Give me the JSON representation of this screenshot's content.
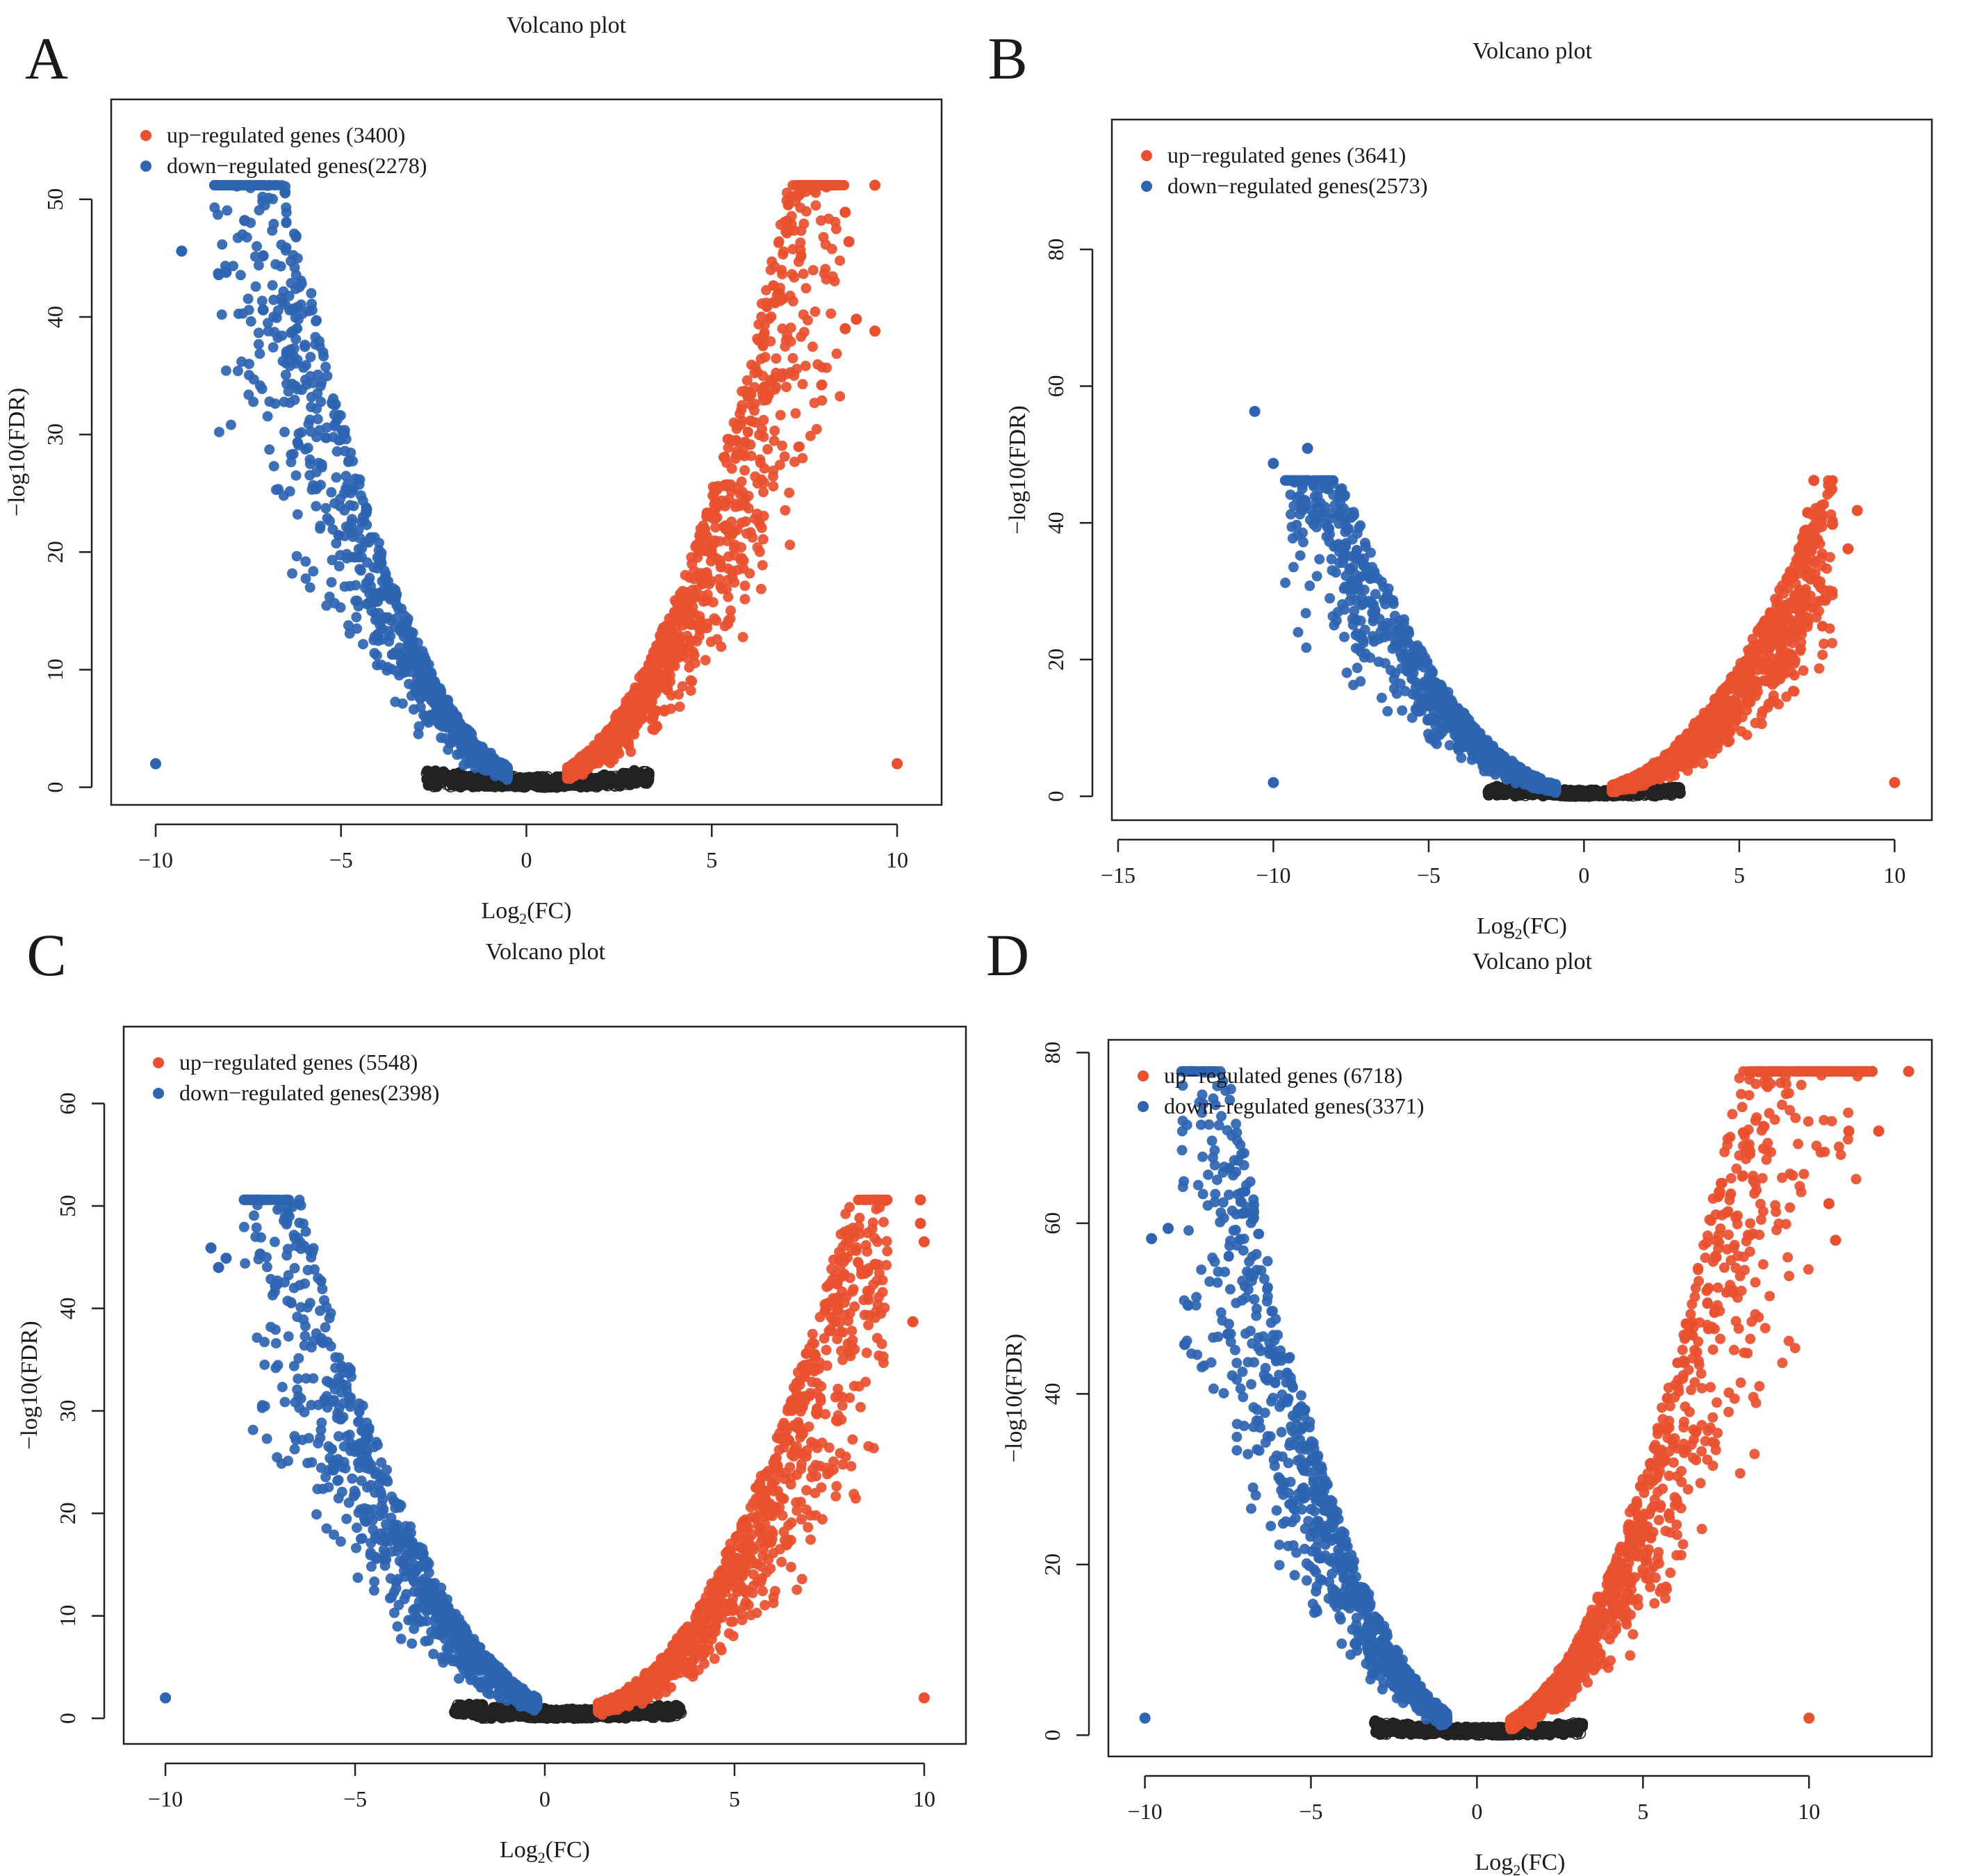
{
  "figure": {
    "colors": {
      "up": "#E8502F",
      "down": "#2E64B2",
      "ns": "#222222",
      "axis": "#222222"
    }
  },
  "chart_data": [
    {
      "panel_letter": "A",
      "type": "scatter",
      "title": "Volcano plot",
      "xlabel": "Log2(FC)",
      "ylabel": "−log10(FDR)",
      "xlim": [
        -11.2,
        11.2
      ],
      "ylim": [
        -1.5,
        58.5
      ],
      "xticks": [
        -10,
        -5,
        0,
        5,
        10
      ],
      "xtick_labels": [
        "−10",
        "−5",
        "0",
        "5",
        "10"
      ],
      "yticks": [
        0,
        10,
        20,
        30,
        40,
        50
      ],
      "ytick_labels": [
        "0",
        "10",
        "20",
        "30",
        "40",
        "50"
      ],
      "legend": {
        "position": "top-left",
        "entries": [
          {
            "label": "up−regulated genes (3400)",
            "series": "up"
          },
          {
            "label": "down−regulated genes(2278)",
            "series": "down"
          }
        ]
      },
      "curve": {
        "k": 1.1,
        "c": 0.4,
        "center": 0.3,
        "up_start": 1.1,
        "down_start": -0.5,
        "x_max": 9.4,
        "x_min": -9.3,
        "y_max": 51.2
      },
      "series": [
        {
          "name": "up-regulated genes",
          "count": 3400,
          "points": [
            [
              9.4,
              51.2
            ],
            [
              8.6,
              48.9
            ],
            [
              8.7,
              46.4
            ],
            [
              8.9,
              39.8
            ],
            [
              8.6,
              39.0
            ],
            [
              9.4,
              38.8
            ],
            [
              10,
              2
            ]
          ]
        },
        {
          "name": "down-regulated genes",
          "count": 2278,
          "points": [
            [
              -9.3,
              45.6
            ],
            [
              -7.6,
              48.2
            ],
            [
              -8.3,
              43.6
            ],
            [
              -8.1,
              43.8
            ],
            [
              -7.1,
              45.2
            ],
            [
              -7.1,
              40.6
            ],
            [
              -10,
              2
            ]
          ]
        }
      ]
    },
    {
      "panel_letter": "B",
      "type": "scatter",
      "title": "Volcano plot",
      "xlabel": "Log2(FC)",
      "ylabel": "−log10(FDR)",
      "xlim": [
        -15.2,
        11.2
      ],
      "ylim": [
        -3.5,
        99
      ],
      "xticks": [
        -15,
        -10,
        -5,
        0,
        5,
        10
      ],
      "xtick_labels": [
        "−15",
        "−10",
        "−5",
        "0",
        "5",
        "10"
      ],
      "yticks": [
        0,
        20,
        40,
        60,
        80
      ],
      "ytick_labels": [
        "0",
        "20",
        "40",
        "60",
        "80"
      ],
      "legend": {
        "position": "top-left",
        "entries": [
          {
            "label": "up−regulated genes (3641)",
            "series": "up"
          },
          {
            "label": "down−regulated genes(2573)",
            "series": "down"
          }
        ]
      },
      "curve": {
        "k": 0.75,
        "c": 0.4,
        "center": 0.0,
        "up_start": 0.9,
        "down_start": -0.9,
        "x_max": 8.8,
        "x_min": -10.6,
        "y_max": 46.2
      },
      "series": [
        {
          "name": "up-regulated genes",
          "count": 3641,
          "points": [
            [
              7.4,
              46.2
            ],
            [
              8.8,
              41.8
            ],
            [
              7.2,
              41.5
            ],
            [
              8.0,
              39.8
            ],
            [
              8.5,
              36.2
            ],
            [
              10,
              2
            ]
          ]
        },
        {
          "name": "down-regulated genes",
          "count": 2573,
          "points": [
            [
              -10.6,
              56.3
            ],
            [
              -8.9,
              50.9
            ],
            [
              -10.0,
              48.7
            ],
            [
              -8.3,
              45.2
            ],
            [
              -9.0,
              42.8
            ],
            [
              -8.4,
              41.5
            ],
            [
              -10,
              2
            ]
          ]
        }
      ]
    },
    {
      "panel_letter": "C",
      "type": "scatter",
      "title": "Volcano plot",
      "xlabel": "Log2(FC)",
      "ylabel": "−log10(FDR)",
      "xlim": [
        -11.1,
        11.1
      ],
      "ylim": [
        -2.5,
        67.5
      ],
      "xticks": [
        -10,
        -5,
        0,
        5,
        10
      ],
      "xtick_labels": [
        "−10",
        "−5",
        "0",
        "5",
        "10"
      ],
      "yticks": [
        0,
        10,
        20,
        30,
        40,
        50,
        60
      ],
      "ytick_labels": [
        "0",
        "10",
        "20",
        "30",
        "40",
        "50",
        "60"
      ],
      "legend": {
        "position": "top-left",
        "entries": [
          {
            "label": "up−regulated genes (5548)",
            "series": "up"
          },
          {
            "label": "down−regulated genes(2398)",
            "series": "down"
          }
        ]
      },
      "curve": {
        "k": 0.95,
        "c": 0.4,
        "center": 0.8,
        "up_start": 1.4,
        "down_start": -0.2,
        "x_max": 9.9,
        "x_min": -8.8,
        "y_max": 50.6
      },
      "series": [
        {
          "name": "up-regulated genes",
          "count": 5548,
          "points": [
            [
              9.9,
              50.6
            ],
            [
              9.9,
              48.3
            ],
            [
              10.0,
              46.5
            ],
            [
              8.7,
              44.3
            ],
            [
              7.7,
              42.4
            ],
            [
              9.7,
              38.7
            ],
            [
              10,
              2
            ]
          ]
        },
        {
          "name": "down-regulated genes",
          "count": 2398,
          "points": [
            [
              -8.8,
              45.9
            ],
            [
              -8.4,
              44.9
            ],
            [
              -7.5,
              45.3
            ],
            [
              -7.1,
              42.2
            ],
            [
              -8.6,
              44.0
            ],
            [
              -10,
              2
            ]
          ]
        }
      ]
    },
    {
      "panel_letter": "D",
      "type": "scatter",
      "title": "Volcano plot",
      "xlabel": "Log2(FC)",
      "ylabel": "−log10(FDR)",
      "xlim": [
        -11.1,
        13.7
      ],
      "ylim": [
        -2.5,
        81.5
      ],
      "xticks": [
        -10,
        -5,
        0,
        5,
        10
      ],
      "xtick_labels": [
        "−10",
        "−5",
        "0",
        "5",
        "10"
      ],
      "yticks": [
        0,
        20,
        40,
        60,
        80
      ],
      "ytick_labels": [
        "0",
        "20",
        "40",
        "60",
        "80"
      ],
      "legend": {
        "position": "top-left",
        "entries": [
          {
            "label": "up−regulated genes (6718)",
            "series": "up"
          },
          {
            "label": "down−regulated genes(3371)",
            "series": "down"
          }
        ]
      },
      "curve": {
        "k": 1.3,
        "c": 0.4,
        "center": 0.2,
        "up_start": 1.0,
        "down_start": -0.9,
        "x_max": 13.0,
        "x_min": -9.8,
        "y_max": 77.8
      },
      "series": [
        {
          "name": "up-regulated genes",
          "count": 6718,
          "points": [
            [
              13.0,
              77.8
            ],
            [
              11.9,
              77.8
            ],
            [
              12.1,
              70.8
            ],
            [
              11.2,
              70.8
            ],
            [
              10.6,
              62.3
            ],
            [
              10.8,
              58.0
            ],
            [
              10,
              2
            ]
          ]
        },
        {
          "name": "down-regulated genes",
          "count": 3371,
          "points": [
            [
              -9.8,
              58.2
            ],
            [
              -9.3,
              59.4
            ],
            [
              -8.7,
              50.4
            ],
            [
              -8.8,
              45.8
            ],
            [
              -7.5,
              47.0
            ],
            [
              -10,
              2
            ]
          ]
        }
      ]
    }
  ]
}
